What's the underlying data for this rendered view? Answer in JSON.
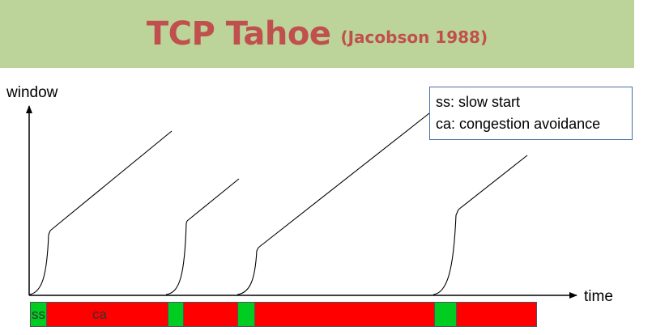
{
  "title": {
    "main": "TCP Tahoe",
    "sub": "(Jacobson 1988)"
  },
  "axes": {
    "ylabel": "window",
    "xlabel": "time"
  },
  "legend": [
    {
      "text": "ss: slow start"
    },
    {
      "text": "ca: congestion avoidance"
    }
  ],
  "phase_bar": {
    "colors": {
      "ss": "#00cc22",
      "ca": "#ff0000"
    },
    "segments": [
      {
        "type": "ss",
        "label": "ss"
      },
      {
        "type": "ca",
        "label": "ca"
      },
      {
        "type": "ss",
        "label": ""
      },
      {
        "type": "ca",
        "label": ""
      },
      {
        "type": "ss",
        "label": ""
      },
      {
        "type": "ca",
        "label": ""
      },
      {
        "type": "ss",
        "label": ""
      },
      {
        "type": "ca",
        "label": ""
      }
    ]
  }
}
